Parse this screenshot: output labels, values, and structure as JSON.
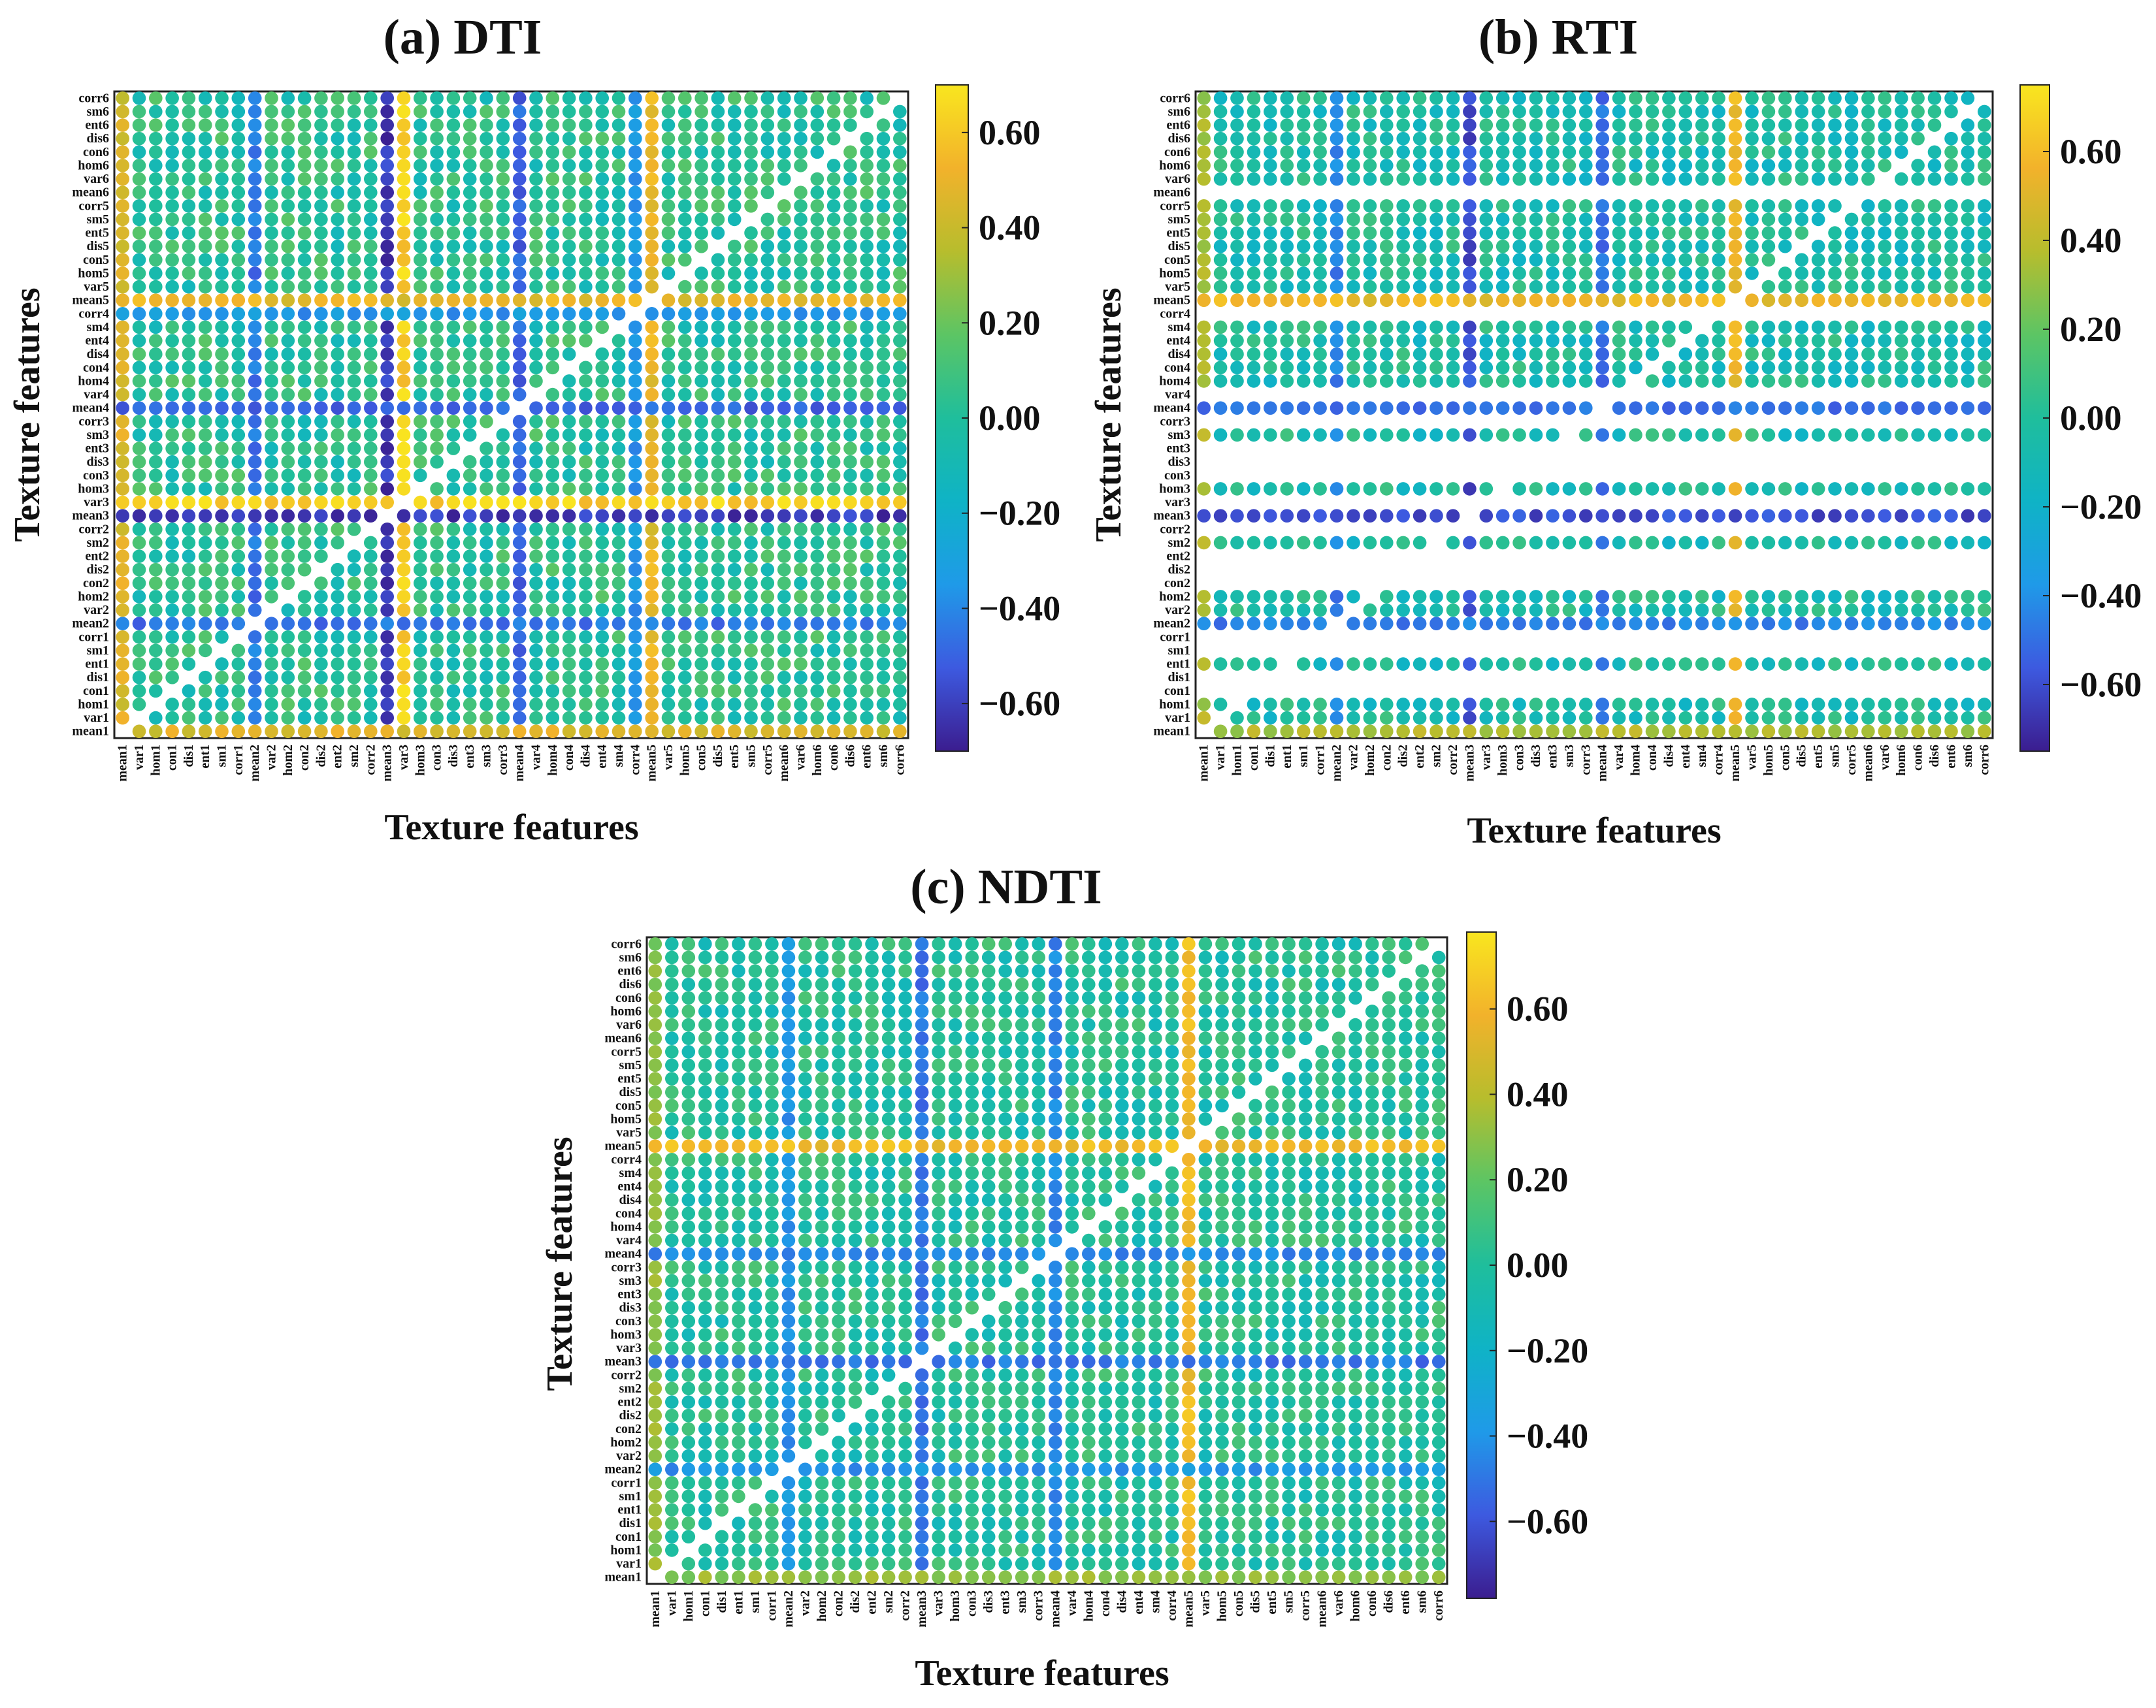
{
  "figure": {
    "description_id": "texture-correlation-figure"
  },
  "chart_data": [
    {
      "type": "heatmap",
      "panel": "a",
      "title": "(a)  DTI",
      "xlabel": "Texture features",
      "ylabel": "Texture features",
      "categories": [
        "mean1",
        "var1",
        "hom1",
        "con1",
        "dis1",
        "ent1",
        "sm1",
        "corr1",
        "mean2",
        "var2",
        "hom2",
        "con2",
        "dis2",
        "ent2",
        "sm2",
        "corr2",
        "mean3",
        "var3",
        "hom3",
        "con3",
        "dis3",
        "ent3",
        "sm3",
        "corr3",
        "mean4",
        "var4",
        "hom4",
        "con4",
        "dis4",
        "ent4",
        "sm4",
        "corr4",
        "mean5",
        "var5",
        "hom5",
        "con5",
        "dis5",
        "ent5",
        "sm5",
        "corr5",
        "mean6",
        "var6",
        "hom6",
        "con6",
        "dis6",
        "ent6",
        "sm6",
        "corr6"
      ],
      "colorbar": {
        "ticks": [
          0.6,
          0.4,
          0.2,
          0.0,
          -0.2,
          -0.4,
          -0.6
        ],
        "tick_labels": [
          "0.60",
          "0.40",
          "0.20",
          "0.00",
          "−0.20",
          "−0.40",
          "−0.60"
        ],
        "range": [
          -0.7,
          0.7
        ]
      },
      "colormap": [
        "#3b1d8f",
        "#3d5ae0",
        "#1f9ae8",
        "#0fb3c6",
        "#1fbe9c",
        "#5cc564",
        "#b7bd2d",
        "#f2b22b",
        "#f9e61f"
      ],
      "feature_strength": {
        "mean2": -0.45,
        "mean3": -0.62,
        "mean4": -0.5,
        "corr4": -0.35,
        "mean5": 0.5,
        "var3": 0.62,
        "mean1": 0.45
      },
      "base_value": 0.02
    },
    {
      "type": "heatmap",
      "panel": "b",
      "title": "(b)  RTI",
      "xlabel": "Texture features",
      "ylabel": "Texture features",
      "categories": [
        "mean1",
        "var1",
        "hom1",
        "con1",
        "dis1",
        "ent1",
        "sm1",
        "corr1",
        "mean2",
        "var2",
        "hom2",
        "con2",
        "dis2",
        "ent2",
        "sm2",
        "corr2",
        "mean3",
        "var3",
        "hom3",
        "con3",
        "dis3",
        "ent3",
        "sm3",
        "corr3",
        "mean4",
        "var4",
        "hom4",
        "con4",
        "dis4",
        "ent4",
        "sm4",
        "corr4",
        "mean5",
        "var5",
        "hom5",
        "con5",
        "dis5",
        "ent5",
        "sm5",
        "corr5",
        "mean6",
        "var6",
        "hom6",
        "con6",
        "dis6",
        "ent6",
        "sm6",
        "corr6"
      ],
      "colorbar": {
        "ticks": [
          0.6,
          0.4,
          0.2,
          0.0,
          -0.2,
          -0.4,
          -0.6
        ],
        "tick_labels": [
          "0.60",
          "0.40",
          "0.20",
          "0.00",
          "−0.20",
          "−0.40",
          "−0.60"
        ],
        "range": [
          -0.75,
          0.75
        ]
      },
      "colormap": [
        "#3b1d8f",
        "#3d5ae0",
        "#1f9ae8",
        "#0fb3c6",
        "#1fbe9c",
        "#5cc564",
        "#b7bd2d",
        "#f2b22b",
        "#f9e61f"
      ],
      "feature_strength": {
        "mean2": -0.45,
        "mean3": -0.6,
        "mean4": -0.5,
        "mean5": 0.55,
        "mean1": 0.35
      },
      "base_value": -0.05,
      "missing_rows": [
        "mean6",
        "corr4",
        "var4",
        "corr3",
        "ent3",
        "dis3",
        "con3",
        "var3",
        "corr2",
        "ent2",
        "dis2",
        "con2",
        "corr1",
        "dis1",
        "con1",
        "sm1_partial"
      ]
    },
    {
      "type": "heatmap",
      "panel": "c",
      "title": "(c)  NDTI",
      "xlabel": "Texture features",
      "ylabel": "Texture features",
      "categories": [
        "mean1",
        "var1",
        "hom1",
        "con1",
        "dis1",
        "ent1",
        "sm1",
        "corr1",
        "mean2",
        "var2",
        "hom2",
        "con2",
        "dis2",
        "ent2",
        "sm2",
        "corr2",
        "mean3",
        "var3",
        "hom3",
        "con3",
        "dis3",
        "ent3",
        "sm3",
        "corr3",
        "mean4",
        "var4",
        "hom4",
        "con4",
        "dis4",
        "ent4",
        "sm4",
        "corr4",
        "mean5",
        "var5",
        "hom5",
        "con5",
        "dis5",
        "ent5",
        "sm5",
        "corr5",
        "mean6",
        "var6",
        "hom6",
        "con6",
        "dis6",
        "ent6",
        "sm6",
        "corr6"
      ],
      "colorbar": {
        "ticks": [
          0.6,
          0.4,
          0.2,
          0.0,
          -0.2,
          -0.4,
          -0.6
        ],
        "tick_labels": [
          "0.60",
          "0.40",
          "0.20",
          "0.00",
          "−0.20",
          "−0.40",
          "−0.60"
        ],
        "range": [
          -0.78,
          0.78
        ]
      },
      "colormap": [
        "#3b1d8f",
        "#3d5ae0",
        "#1f9ae8",
        "#0fb3c6",
        "#1fbe9c",
        "#5cc564",
        "#b7bd2d",
        "#f2b22b",
        "#f9e61f"
      ],
      "feature_strength": {
        "mean2": -0.4,
        "mean3": -0.5,
        "mean4": -0.45,
        "mean5": 0.6,
        "mean1": 0.3
      },
      "base_value": 0.0
    }
  ]
}
